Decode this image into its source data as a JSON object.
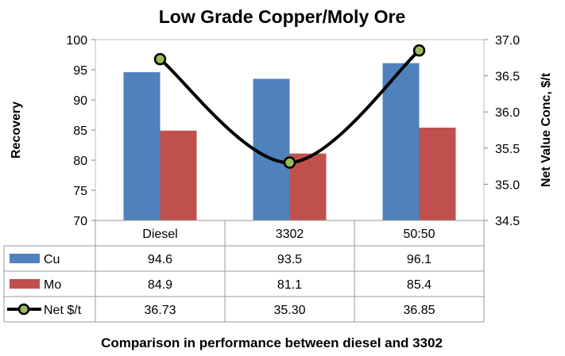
{
  "chart_data": {
    "type": "bar",
    "title": "Low Grade Copper/Moly Ore",
    "caption": "Comparison in performance between diesel and 3302",
    "categories": [
      "Diesel",
      "3302",
      "50:50"
    ],
    "ylabel": "Recovery",
    "y2label": "Net Value Conc, $/t",
    "ylim": [
      70,
      100
    ],
    "y2lim": [
      34.5,
      37.0
    ],
    "yticks": [
      "70",
      "75",
      "80",
      "85",
      "90",
      "95",
      "100"
    ],
    "y2ticks": [
      "34.5",
      "35.0",
      "35.5",
      "36.0",
      "36.5",
      "37.0"
    ],
    "legend_placement": "data-table",
    "series": [
      {
        "name": "Cu",
        "type": "bar",
        "axis": "left",
        "color": "#4F81BD",
        "values": [
          94.6,
          93.5,
          96.1
        ],
        "labels": [
          "94.6",
          "93.5",
          "96.1"
        ]
      },
      {
        "name": "Mo",
        "type": "bar",
        "axis": "left",
        "color": "#C0504D",
        "values": [
          84.9,
          81.1,
          85.4
        ],
        "labels": [
          "84.9",
          "81.1",
          "85.4"
        ]
      },
      {
        "name": "Net $/t",
        "type": "line",
        "axis": "right",
        "color": "#000000",
        "marker_color": "#9BBB59",
        "values": [
          36.73,
          35.3,
          36.85
        ],
        "labels": [
          "36.73",
          "35.30",
          "36.85"
        ]
      }
    ]
  }
}
